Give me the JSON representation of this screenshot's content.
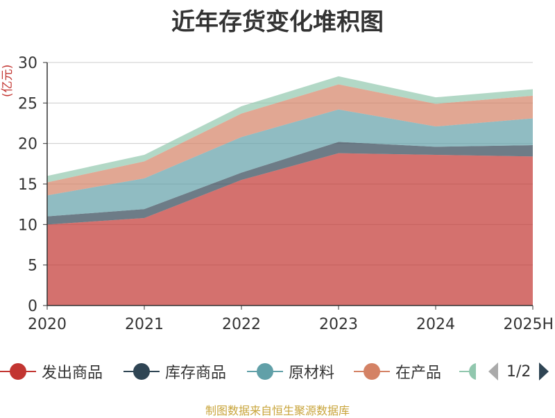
{
  "source_note": "制图数据来自恒生聚源数据库",
  "legend": {
    "page_text": "1/2"
  },
  "colors": {
    "发出商品": "#c23531",
    "库存商品": "#2f4554",
    "原材料": "#61a0a8",
    "在产品": "#d48265",
    "第五项": "#91c7ae",
    "axis": "#333333",
    "grid": "#cccccc",
    "ylabel": "#c23531",
    "source": "#c8a43a"
  },
  "chart_data": {
    "type": "area",
    "stacked": true,
    "title": "近年存货变化堆积图",
    "ylabel": "(亿元)",
    "xlabel": "",
    "categories": [
      "2020",
      "2021",
      "2022",
      "2023",
      "2024",
      "2025H"
    ],
    "ylim": [
      0,
      30
    ],
    "yticks": [
      0,
      5,
      10,
      15,
      20,
      25,
      30
    ],
    "grid": true,
    "legend_position": "bottom",
    "series": [
      {
        "name": "发出商品",
        "values": [
          10.0,
          10.8,
          15.5,
          18.8,
          18.6,
          18.4
        ]
      },
      {
        "name": "库存商品",
        "values": [
          1.0,
          1.1,
          0.9,
          1.4,
          1.0,
          1.4
        ]
      },
      {
        "name": "原材料",
        "values": [
          2.6,
          3.8,
          4.4,
          4.0,
          2.5,
          3.3
        ]
      },
      {
        "name": "在产品",
        "values": [
          1.6,
          2.1,
          2.9,
          3.1,
          2.8,
          2.8
        ]
      },
      {
        "name": "",
        "values": [
          0.8,
          0.8,
          0.9,
          1.0,
          0.8,
          0.8
        ]
      }
    ],
    "legend_entries_visible": [
      "发出商品",
      "库存商品",
      "原材料",
      "在产品"
    ]
  }
}
